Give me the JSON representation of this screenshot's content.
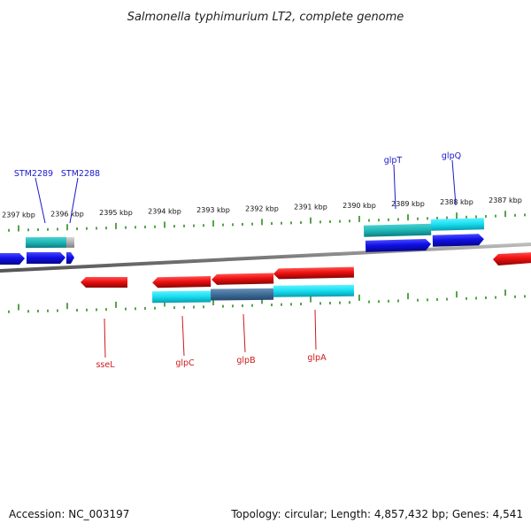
{
  "title": "Salmonella typhimurium LT2, complete genome",
  "footer": {
    "accession": "Accession: NC_003197",
    "topology": "Topology: circular; Length: 4,857,432 bp; Genes: 4,541"
  },
  "colors": {
    "forward_gene": "#1a1acc",
    "reverse_gene": "#cc1a1a",
    "forward_feature": "#22c8c8",
    "reverse_feature": "#19e6f0",
    "tick": "#2e8b1e",
    "backbone": "#888888"
  },
  "ticks": [
    {
      "label": "2397 kbp"
    },
    {
      "label": "2396 kbp"
    },
    {
      "label": "2395 kbp"
    },
    {
      "label": "2394 kbp"
    },
    {
      "label": "2393 kbp"
    },
    {
      "label": "2392 kbp"
    },
    {
      "label": "2391 kbp"
    },
    {
      "label": "2390 kbp"
    },
    {
      "label": "2389 kbp"
    },
    {
      "label": "2388 kbp"
    },
    {
      "label": "2387 kbp"
    }
  ],
  "genes": {
    "forward": [
      {
        "name": "STM2289"
      },
      {
        "name": "STM2288"
      },
      {
        "name": "glpT"
      },
      {
        "name": "glpQ"
      }
    ],
    "reverse": [
      {
        "name": "sseL"
      },
      {
        "name": "glpC"
      },
      {
        "name": "glpB"
      },
      {
        "name": "glpA"
      }
    ]
  }
}
